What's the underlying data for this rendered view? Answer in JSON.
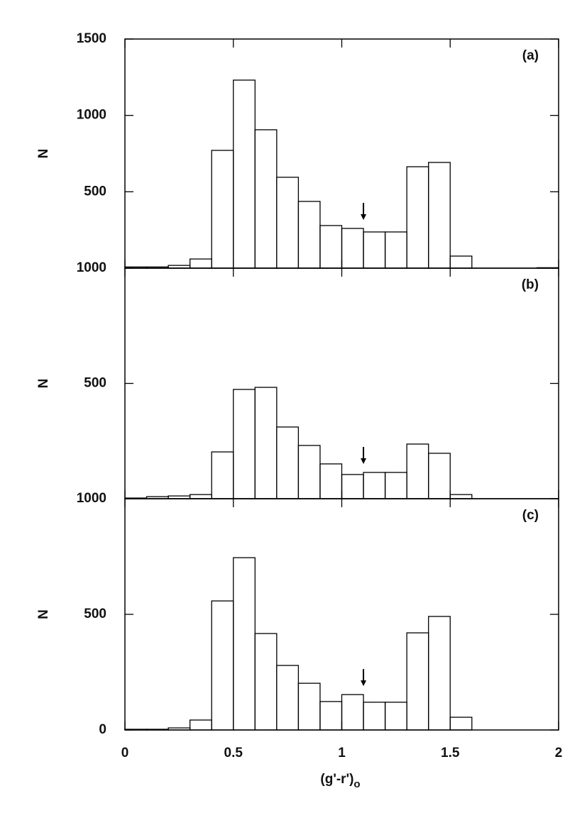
{
  "chart_data": [
    {
      "type": "histogram",
      "panel_label": "(a)",
      "y_label": "N",
      "bins": [
        0,
        0.1,
        0.2,
        0.3,
        0.4,
        0.5,
        0.6,
        0.7,
        0.8,
        0.9,
        1.0,
        1.1,
        1.2,
        1.3,
        1.4,
        1.5,
        1.6,
        1.7,
        1.8,
        1.9,
        2.0
      ],
      "values": [
        8,
        8,
        18,
        60,
        771,
        1231,
        906,
        595,
        437,
        279,
        260,
        237,
        237,
        664,
        692,
        79,
        0,
        0,
        0,
        3
      ],
      "color": "#000000",
      "arrow_x": 1.1,
      "xlim": [
        0,
        2
      ],
      "xticks": [
        0,
        0.5,
        1,
        1.5,
        2
      ],
      "ylim": [
        0,
        1500
      ],
      "yticks": [
        500,
        1000,
        1500
      ]
    },
    {
      "type": "histogram",
      "panel_label": "(b)",
      "y_label": "N",
      "bins": [
        0,
        0.1,
        0.2,
        0.3,
        0.4,
        0.5,
        0.6,
        0.7,
        0.8,
        0.9,
        1.0,
        1.1,
        1.2,
        1.3,
        1.4,
        1.5,
        1.6,
        1.7,
        1.8,
        1.9,
        2.0
      ],
      "values": [
        3,
        9,
        12,
        18,
        203,
        474,
        483,
        311,
        231,
        151,
        105,
        114,
        114,
        237,
        197,
        18,
        0,
        0,
        0,
        0
      ],
      "color": "#000000",
      "arrow_x": 1.1,
      "xlim": [
        0,
        2
      ],
      "xticks": [
        0,
        0.5,
        1,
        1.5,
        2
      ],
      "ylim": [
        0,
        1000
      ],
      "yticks": [
        500,
        1000
      ]
    },
    {
      "type": "histogram",
      "panel_label": "(c)",
      "y_label": "N",
      "x_label": "(g'-r')",
      "x_label_sub": "o",
      "bins": [
        0,
        0.1,
        0.2,
        0.3,
        0.4,
        0.5,
        0.6,
        0.7,
        0.8,
        0.9,
        1.0,
        1.1,
        1.2,
        1.3,
        1.4,
        1.5,
        1.6,
        1.7,
        1.8,
        1.9,
        2.0
      ],
      "values": [
        3,
        3,
        9,
        43,
        558,
        745,
        417,
        279,
        202,
        123,
        153,
        120,
        120,
        420,
        491,
        55,
        0,
        0,
        0,
        0
      ],
      "color": "#000000",
      "arrow_x": 1.1,
      "xlim": [
        0,
        2
      ],
      "xticks": [
        0,
        0.5,
        1,
        1.5,
        2
      ],
      "xtick_labels": true,
      "ylim": [
        0,
        1000
      ],
      "yticks": [
        0,
        500,
        1000
      ]
    }
  ]
}
